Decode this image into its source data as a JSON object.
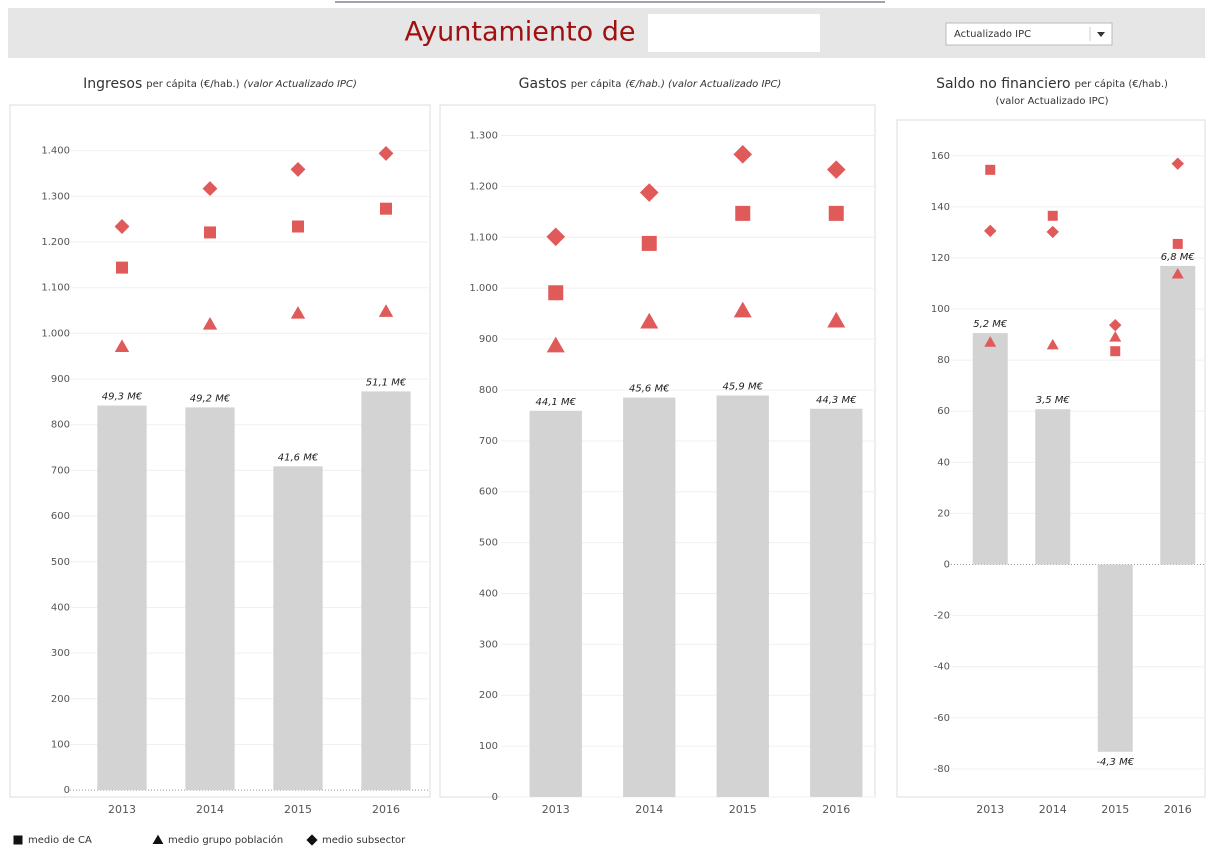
{
  "header": {
    "title": "Ayuntamiento de",
    "dropdown": "Actualizado IPC"
  },
  "legend": [
    {
      "label": "medio de CA",
      "shape": "square"
    },
    {
      "label": "medio grupo población",
      "shape": "triangle"
    },
    {
      "label": "medio subsector",
      "shape": "diamond"
    }
  ],
  "chart_data": [
    {
      "type": "bar",
      "title": "Ingresos",
      "subtitle": "per cápita (€/hab.)",
      "title_note": "(valor Actualizado IPC)",
      "categories": [
        "2013",
        "2014",
        "2015",
        "2016"
      ],
      "values": [
        842,
        838,
        709,
        873
      ],
      "color": "#d3d3d3",
      "bar_labels": [
        "49,3 M€",
        "49,2 M€",
        "41,6 M€",
        "51,1 M€"
      ],
      "series": [
        {
          "shape": "square",
          "color": "#e05a5a",
          "values": [
            1144,
            1221,
            1234,
            1273
          ]
        },
        {
          "shape": "triangle",
          "color": "#e05a5a",
          "values": [
            971,
            1020,
            1044,
            1048
          ]
        },
        {
          "shape": "diamond",
          "color": "#e05a5a",
          "values": [
            1234,
            1317,
            1359,
            1394
          ]
        }
      ],
      "ylim": [
        -15,
        1500
      ],
      "yticks": [
        0,
        100,
        200,
        300,
        400,
        500,
        600,
        700,
        800,
        900,
        {
          "value": 1000,
          "label": "1.000"
        },
        {
          "value": 1100,
          "label": "1.100"
        },
        {
          "value": 1200,
          "label": "1.200"
        },
        {
          "value": 1300,
          "label": "1.300"
        },
        {
          "value": 1400,
          "label": "1.400"
        }
      ],
      "grid": true
    },
    {
      "type": "bar",
      "title": "Gastos",
      "subtitle": "per cápita",
      "title_note": "(€/hab.) (valor Actualizado IPC)",
      "categories": [
        "2013",
        "2014",
        "2015",
        "2016"
      ],
      "values": [
        759,
        785,
        789,
        763
      ],
      "color": "#d3d3d3",
      "bar_labels": [
        "44,1 M€",
        "45,6 M€",
        "45,9 M€",
        "44,3 M€"
      ],
      "series": [
        {
          "shape": "square",
          "color": "#e05a5a",
          "values": [
            991,
            1088,
            1147,
            1147
          ]
        },
        {
          "shape": "triangle",
          "color": "#e05a5a",
          "values": [
            887,
            934,
            956,
            936
          ]
        },
        {
          "shape": "diamond",
          "color": "#e05a5a",
          "values": [
            1101,
            1188,
            1263,
            1233
          ]
        }
      ],
      "ylim": [
        0,
        1360
      ],
      "yticks": [
        0,
        100,
        200,
        300,
        400,
        500,
        600,
        700,
        800,
        900,
        {
          "value": 1000,
          "label": "1.000"
        },
        {
          "value": 1100,
          "label": "1.100"
        },
        {
          "value": 1200,
          "label": "1.200"
        },
        {
          "value": 1300,
          "label": "1.300"
        }
      ],
      "grid": true
    },
    {
      "type": "bar",
      "title": "Saldo no financiero",
      "subtitle": "per cápita (€/hab.)",
      "title_note": "(valor Actualizado IPC)",
      "categories": [
        "2013",
        "2014",
        "2015",
        "2016"
      ],
      "values": [
        90.6,
        60.8,
        -73.3,
        116.9
      ],
      "color": "#d3d3d3",
      "bar_labels": [
        "5,2 M€",
        "3,5 M€",
        "-4,3 M€",
        "6,8 M€"
      ],
      "series": [
        {
          "shape": "square",
          "color": "#e05a5a",
          "values": [
            154.5,
            136.5,
            83.5,
            125.5
          ]
        },
        {
          "shape": "triangle",
          "color": "#e05a5a",
          "values": [
            87,
            86,
            89,
            113.7
          ]
        },
        {
          "shape": "diamond",
          "color": "#e05a5a",
          "values": [
            130.6,
            130.2,
            93.7,
            156.9
          ]
        }
      ],
      "ylim": [
        -91,
        174
      ],
      "yticks": [
        -80,
        -60,
        -40,
        -20,
        0,
        20,
        40,
        60,
        80,
        100,
        120,
        140,
        160
      ],
      "grid": true
    }
  ]
}
